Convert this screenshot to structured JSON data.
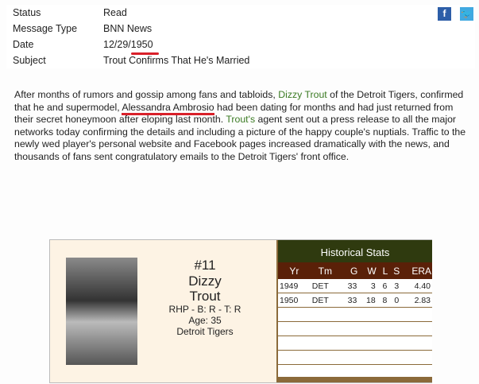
{
  "meta": [
    {
      "label": "Status",
      "value": "Read"
    },
    {
      "label": "Message Type",
      "value": "BNN News"
    },
    {
      "label": "Date",
      "value": "12/29/1950"
    },
    {
      "label": "Subject",
      "value": "Trout Confirms That He's Married"
    }
  ],
  "social": {
    "facebook": "f",
    "twitter": "t"
  },
  "article": {
    "p1": "After months of rumors and gossip among fans and tabloids, ",
    "link1": "Dizzy Trout",
    "p2": " of the Detroit Tigers, confirmed that he and supermodel, ",
    "name2": "Alessandra Ambrosio",
    "p3": " had been dating for months and had just returned from their secret honeymoon after eloping last month. ",
    "link2": "Trout's",
    "p4": " agent sent out a press release to all the major networks today confirming the details and including a picture of the happy couple's nuptials. Traffic to the newly wed player's personal website and Facebook pages increased dramatically with the news, and thousands of fans sent congratulatory emails to the Detroit Tigers' front office."
  },
  "player": {
    "number": "#11",
    "first": "Dizzy",
    "last": "Trout",
    "bio": "RHP - B: R - T: R",
    "age": "Age: 35",
    "team": "Detroit Tigers"
  },
  "stats": {
    "title": "Historical Stats",
    "headers": [
      "Yr",
      "Tm",
      "G",
      "W",
      "L",
      "S",
      "ERA"
    ],
    "rows": [
      [
        "1949",
        "DET",
        "33",
        "3",
        "6",
        "3",
        "4.40"
      ],
      [
        "1950",
        "DET",
        "33",
        "18",
        "8",
        "0",
        "2.83"
      ]
    ]
  },
  "colors": {
    "link": "#3a7a22",
    "underline": "#d9202a",
    "stats_title": "#2f3a0f",
    "stats_header": "#5a2008"
  }
}
